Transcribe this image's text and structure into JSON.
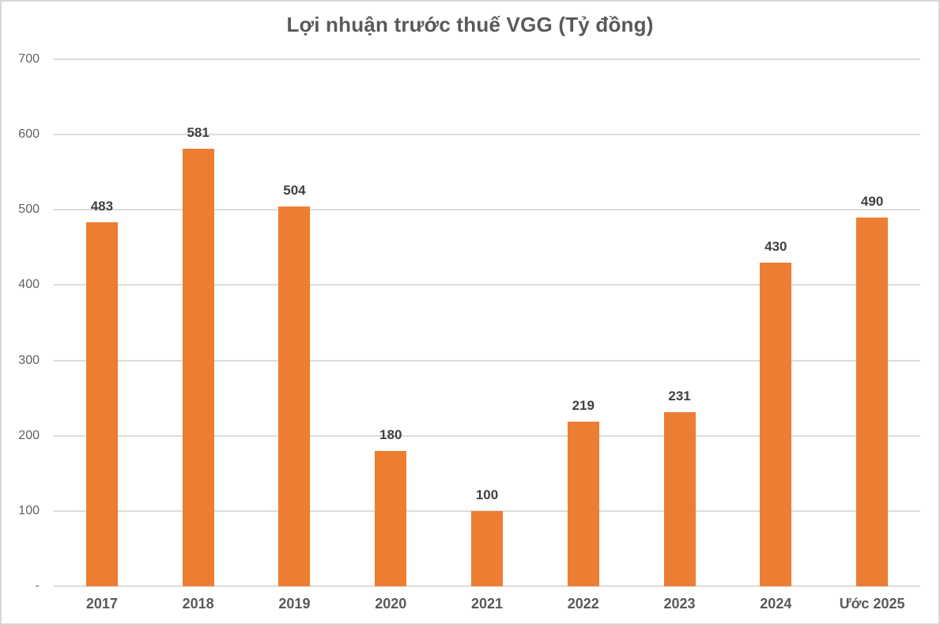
{
  "title": "Lợi nhuận trước thuế VGG (Tỷ đồng)",
  "chart_data": {
    "type": "bar",
    "title": "Lợi nhuận trước thuế VGG (Tỷ đồng)",
    "categories": [
      "2017",
      "2018",
      "2019",
      "2020",
      "2021",
      "2022",
      "2023",
      "2024",
      "Ước 2025"
    ],
    "values": [
      483,
      581,
      504,
      180,
      100,
      219,
      231,
      430,
      490
    ],
    "data_labels": [
      "483",
      "581",
      "504",
      "180",
      "100",
      "219",
      "231",
      "430",
      "490"
    ],
    "xlabel": "",
    "ylabel": "",
    "ylim": [
      0,
      700
    ],
    "yticks": [
      {
        "value": 0,
        "label": "-"
      },
      {
        "value": 100,
        "label": "100"
      },
      {
        "value": 200,
        "label": "200"
      },
      {
        "value": 300,
        "label": "300"
      },
      {
        "value": 400,
        "label": "400"
      },
      {
        "value": 500,
        "label": "500"
      },
      {
        "value": 600,
        "label": "600"
      },
      {
        "value": 700,
        "label": "700"
      }
    ],
    "grid": true,
    "legend_position": "none",
    "colors": {
      "bar": "#ED7D31",
      "gridline": "#dcdcdc",
      "title_text": "#595959",
      "data_label_text": "#404040",
      "axis_tick_text": "#616161",
      "frame_border": "#d8d8d8",
      "background": "#ffffff"
    }
  }
}
